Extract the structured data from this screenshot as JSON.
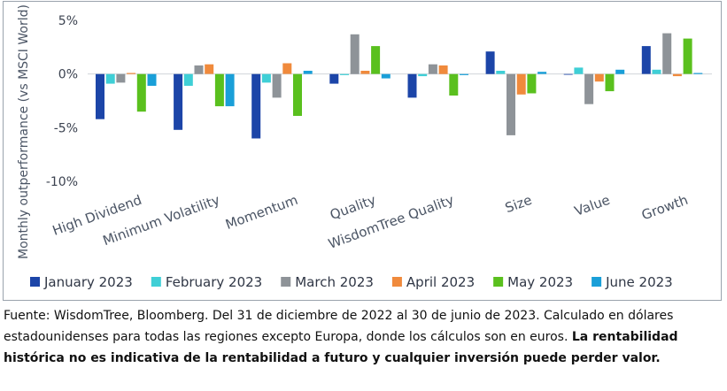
{
  "chart_data": {
    "type": "bar",
    "categories": [
      "High Dividend",
      "Minimum Volatility",
      "Momentum",
      "Quality",
      "WisdomTree Quality",
      "Size",
      "Value",
      "Growth"
    ],
    "ylabel": "Monthly outperformance (vs MSCI World)",
    "ylim": [
      -10,
      5
    ],
    "yticks": [
      5,
      0,
      -5,
      -10
    ],
    "ytick_labels": [
      "5%",
      "0%",
      "-5%",
      "-10%"
    ],
    "legend_position": "bottom",
    "grid": false,
    "series": [
      {
        "name": "January 2023",
        "color": "#1c45a8",
        "values": [
          -4.2,
          -5.2,
          -6.0,
          -0.9,
          -2.2,
          2.1,
          0.0,
          2.6
        ]
      },
      {
        "name": "February 2023",
        "color": "#3fcfd6",
        "values": [
          -0.9,
          -1.1,
          -0.8,
          -0.1,
          -0.2,
          0.3,
          0.6,
          0.4
        ]
      },
      {
        "name": "March 2023",
        "color": "#8e9398",
        "values": [
          -0.8,
          0.8,
          -2.2,
          3.7,
          0.9,
          -5.7,
          -2.8,
          3.8
        ]
      },
      {
        "name": "April 2023",
        "color": "#f08a3c",
        "values": [
          0.1,
          0.9,
          1.0,
          0.3,
          0.8,
          -1.9,
          -0.7,
          -0.2
        ]
      },
      {
        "name": "May 2023",
        "color": "#5ac01e",
        "values": [
          -3.5,
          -3.0,
          -3.9,
          2.6,
          -2.0,
          -1.8,
          -1.6,
          3.3
        ]
      },
      {
        "name": "June 2023",
        "color": "#1a9fd8",
        "values": [
          -1.1,
          -3.0,
          0.3,
          -0.4,
          -0.1,
          0.2,
          0.4,
          0.1
        ]
      }
    ]
  },
  "caption": {
    "normal": "Fuente: WisdomTree, Bloomberg. Del 31 de diciembre de 2022 al 30 de junio de 2023. Calculado en dólares estadounidenses para todas las regiones excepto Europa, donde los cálculos son en euros. ",
    "bold": "La rentabilidad histórica no es indicativa de la rentabilidad a futuro y cualquier inversión puede perder valor."
  }
}
